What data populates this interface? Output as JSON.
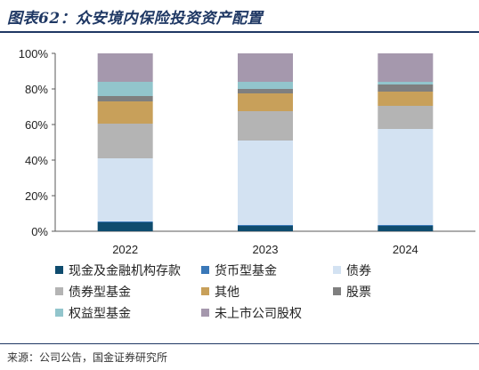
{
  "title": "图表62：众安境内保险投资资产配置",
  "source": "来源：公司公告，国金证券研究所",
  "colors": {
    "title": "#1f3864",
    "axis": "#595959"
  },
  "chart_data": {
    "type": "bar",
    "stacked": true,
    "categories": [
      "2022",
      "2023",
      "2024"
    ],
    "ylim": [
      0,
      100
    ],
    "yticks": [
      "0%",
      "20%",
      "40%",
      "60%",
      "80%",
      "100%"
    ],
    "grid": false,
    "legend_position": "bottom",
    "series": [
      {
        "name": "现金及金融机构存款",
        "color": "#0f4c6e",
        "values": [
          5,
          3,
          3
        ]
      },
      {
        "name": "货币型基金",
        "color": "#3a78b8",
        "values": [
          0.5,
          0.5,
          0.5
        ]
      },
      {
        "name": "债券",
        "color": "#d3e2f2",
        "values": [
          35.5,
          47.5,
          54
        ]
      },
      {
        "name": "债券型基金",
        "color": "#b4b4b4",
        "values": [
          19.5,
          16.5,
          13
        ]
      },
      {
        "name": "其他",
        "color": "#c8a05a",
        "values": [
          12.5,
          10,
          8
        ]
      },
      {
        "name": "股票",
        "color": "#7f7f7f",
        "values": [
          3,
          2.5,
          4
        ]
      },
      {
        "name": "权益型基金",
        "color": "#92c5cc",
        "values": [
          8,
          4,
          1.5
        ]
      },
      {
        "name": "未上市公司股权",
        "color": "#a598ad",
        "values": [
          16,
          16,
          16
        ]
      }
    ]
  }
}
